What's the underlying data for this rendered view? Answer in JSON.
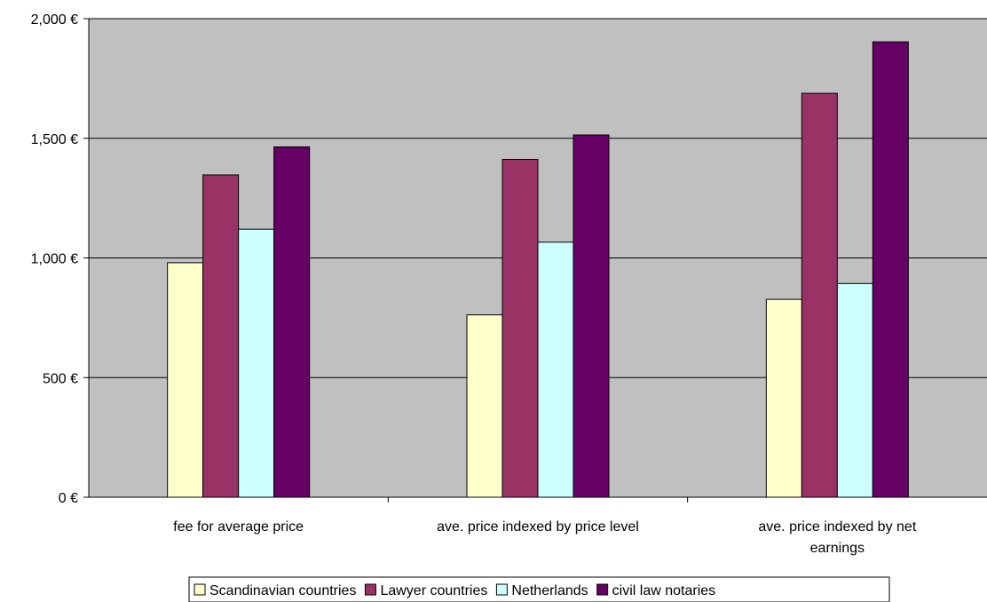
{
  "chart_data": {
    "type": "bar",
    "categories": [
      [
        "fee for average price"
      ],
      [
        "ave. price indexed by price level"
      ],
      [
        "ave. price indexed by net",
        "earnings"
      ]
    ],
    "series": [
      {
        "name": "Scandinavian countries",
        "color": "#ffffcc",
        "values": [
          980,
          762,
          827
        ]
      },
      {
        "name": "Lawyer countries",
        "color": "#993366",
        "values": [
          1347,
          1412,
          1688
        ]
      },
      {
        "name": "Netherlands",
        "color": "#ccffff",
        "values": [
          1120,
          1066,
          893
        ]
      },
      {
        "name": "civil law notaries",
        "color": "#660066",
        "values": [
          1464,
          1514,
          1903
        ]
      }
    ],
    "ylim": [
      0,
      2000
    ],
    "y_ticks": [
      0,
      500,
      1000,
      1500,
      2000
    ],
    "y_tick_labels": [
      "0 €",
      "500 €",
      "1,000 €",
      "1,500 €",
      "2,000 €"
    ],
    "grid": true,
    "plot_background": "#c0c0c0",
    "legend_position": "bottom",
    "title": "",
    "xlabel": "",
    "ylabel": ""
  }
}
